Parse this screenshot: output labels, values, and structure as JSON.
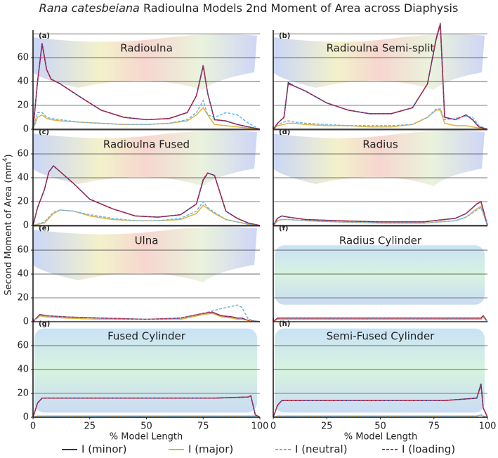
{
  "title_species": "Rana catesbeiana",
  "title": "Radioulna Models 2nd Moment of Area across Diaphysis",
  "y_label": "Second Moment of Area (mm",
  "y_label_sup": "4",
  "y_label_end": ")",
  "x_label": "% Model Length",
  "xlim": [
    0,
    100
  ],
  "xticks": [
    0,
    25,
    50,
    75,
    100
  ],
  "legend": [
    {
      "name": "I (minor)",
      "color": "#2b2d84",
      "dashed": false
    },
    {
      "name": "I (major)",
      "color": "#e2b13c",
      "dashed": false
    },
    {
      "name": "I (neutral)",
      "color": "#6db6ea",
      "dashed": true
    },
    {
      "name": "I (loading)",
      "color": "#c2304c",
      "dashed": true
    }
  ],
  "chart_data": [
    {
      "type": "line",
      "label": "(a)",
      "annotation": "Radioulna",
      "ylim": [
        0,
        83
      ],
      "yticks": [
        0,
        20,
        40,
        60
      ],
      "grid_lines": [
        20,
        40,
        60,
        80
      ],
      "x": [
        0,
        2,
        4,
        6,
        8,
        12,
        20,
        30,
        40,
        50,
        60,
        68,
        72,
        75,
        77,
        80,
        85,
        90,
        95,
        100
      ],
      "series": [
        {
          "values": [
            0,
            40,
            72,
            50,
            42,
            38,
            28,
            16,
            10,
            8,
            9,
            14,
            28,
            53,
            30,
            8,
            7,
            4,
            2,
            0
          ]
        },
        {
          "values": [
            0,
            10,
            12,
            9,
            8,
            7,
            6,
            5,
            4,
            4,
            5,
            7,
            12,
            18,
            12,
            4,
            3,
            2,
            1,
            0
          ]
        },
        {
          "values": [
            0,
            14,
            14,
            10,
            9,
            8,
            6,
            5,
            4,
            4,
            5,
            8,
            14,
            24,
            12,
            10,
            14,
            12,
            5,
            0
          ]
        },
        {
          "values": [
            0,
            40,
            71,
            50,
            42,
            38,
            28,
            16,
            10,
            8,
            9,
            14,
            28,
            54,
            30,
            8,
            7,
            4,
            2,
            0
          ]
        }
      ]
    },
    {
      "type": "line",
      "label": "(b)",
      "annotation": "Radioulna Semi-split",
      "ylim": [
        0,
        83
      ],
      "grid_lines": [
        20,
        40,
        60,
        80
      ],
      "x": [
        0,
        2,
        5,
        7,
        10,
        15,
        25,
        35,
        45,
        55,
        65,
        72,
        76,
        78,
        80,
        85,
        90,
        93,
        96,
        100
      ],
      "series": [
        {
          "values": [
            0,
            5,
            10,
            39,
            36,
            32,
            22,
            16,
            13,
            13,
            18,
            38,
            75,
            88,
            10,
            8,
            12,
            8,
            2,
            0
          ]
        },
        {
          "values": [
            0,
            3,
            4,
            5,
            5,
            4,
            3,
            3,
            2,
            2,
            4,
            10,
            16,
            16,
            5,
            3,
            3,
            2,
            1,
            0
          ]
        },
        {
          "values": [
            0,
            4,
            6,
            7,
            6,
            5,
            4,
            3,
            3,
            3,
            4,
            10,
            17,
            17,
            8,
            9,
            11,
            10,
            3,
            0
          ]
        },
        {
          "values": [
            0,
            5,
            10,
            38,
            36,
            32,
            22,
            16,
            13,
            13,
            18,
            38,
            76,
            89,
            10,
            8,
            12,
            8,
            2,
            0
          ]
        }
      ]
    },
    {
      "type": "line",
      "label": "(c)",
      "annotation": "Radioulna Fused",
      "ylim": [
        0,
        83
      ],
      "yticks": [
        0,
        20,
        40,
        60
      ],
      "grid_lines": [
        20,
        40,
        60,
        80
      ],
      "x": [
        0,
        2,
        5,
        7,
        9,
        12,
        18,
        25,
        35,
        45,
        55,
        65,
        72,
        75,
        77,
        80,
        85,
        90,
        95,
        100
      ],
      "series": [
        {
          "values": [
            0,
            15,
            30,
            45,
            50,
            45,
            35,
            22,
            14,
            8,
            7,
            9,
            18,
            38,
            44,
            42,
            12,
            6,
            2,
            0
          ]
        },
        {
          "values": [
            0,
            1,
            2,
            6,
            10,
            13,
            12,
            8,
            5,
            4,
            4,
            5,
            10,
            17,
            14,
            10,
            5,
            3,
            1,
            0
          ]
        },
        {
          "values": [
            0,
            1,
            3,
            7,
            11,
            13,
            12,
            9,
            6,
            4,
            4,
            6,
            12,
            20,
            15,
            11,
            5,
            3,
            1,
            0
          ]
        },
        {
          "values": [
            0,
            15,
            30,
            45,
            50,
            45,
            35,
            22,
            14,
            8,
            7,
            9,
            18,
            39,
            44,
            42,
            12,
            6,
            2,
            0
          ]
        }
      ]
    },
    {
      "type": "line",
      "label": "(d)",
      "annotation": "Radius",
      "ylim": [
        0,
        83
      ],
      "grid_lines": [
        20,
        40,
        60,
        80
      ],
      "x": [
        0,
        2,
        4,
        7,
        15,
        30,
        50,
        70,
        85,
        90,
        95,
        97,
        100
      ],
      "series": [
        {
          "values": [
            0,
            6,
            8,
            7,
            5,
            4,
            3,
            3,
            6,
            10,
            18,
            20,
            0
          ]
        },
        {
          "values": [
            0,
            4,
            5,
            5,
            4,
            3,
            2,
            2,
            4,
            7,
            14,
            16,
            0
          ]
        },
        {
          "values": [
            0,
            4,
            5,
            5,
            4,
            3,
            2,
            2,
            4,
            7,
            13,
            15,
            0
          ]
        },
        {
          "values": [
            0,
            6,
            8,
            7,
            5,
            4,
            3,
            3,
            6,
            10,
            18,
            20,
            0
          ]
        }
      ]
    },
    {
      "type": "line",
      "label": "(e)",
      "annotation": "Ulna",
      "ylim": [
        0,
        83
      ],
      "yticks": [
        0,
        20,
        40,
        60
      ],
      "grid_lines": [
        20,
        40,
        60,
        80
      ],
      "x": [
        0,
        3,
        6,
        15,
        30,
        50,
        65,
        75,
        79,
        83,
        88,
        90,
        92,
        95,
        100
      ],
      "series": [
        {
          "values": [
            0,
            6,
            5,
            4,
            3,
            2,
            3,
            7,
            8,
            5,
            4,
            3,
            3,
            1,
            0
          ]
        },
        {
          "values": [
            0,
            5,
            4,
            3,
            2,
            2,
            2,
            6,
            7,
            4,
            3,
            2,
            2,
            1,
            0
          ]
        },
        {
          "values": [
            0,
            5,
            5,
            4,
            3,
            2,
            3,
            7,
            9,
            11,
            13,
            14,
            12,
            2,
            0
          ]
        },
        {
          "values": [
            0,
            6,
            5,
            4,
            3,
            2,
            3,
            7,
            8,
            5,
            4,
            3,
            3,
            1,
            0
          ]
        }
      ]
    },
    {
      "type": "line",
      "label": "(f)",
      "annotation": "Radius Cylinder",
      "ylim": [
        0,
        83
      ],
      "grid_lines": [
        20,
        40,
        60,
        80
      ],
      "x": [
        0,
        2,
        50,
        97,
        98,
        100
      ],
      "series": [
        {
          "values": [
            0,
            3,
            3,
            3,
            5,
            0
          ]
        },
        {
          "values": [
            0,
            2,
            2,
            2,
            4,
            0
          ]
        },
        {
          "values": [
            0,
            2,
            2,
            2,
            4,
            0
          ]
        },
        {
          "values": [
            0,
            3,
            3,
            3,
            5,
            0
          ]
        }
      ]
    },
    {
      "type": "line",
      "label": "(g)",
      "annotation": "Fused Cylinder",
      "ylim": [
        0,
        83
      ],
      "yticks": [
        0,
        20,
        40,
        60
      ],
      "grid_lines": [
        20,
        40,
        60,
        80
      ],
      "x": [
        0,
        2,
        4,
        20,
        40,
        60,
        80,
        95,
        96,
        98,
        100
      ],
      "series": [
        {
          "values": [
            0,
            12,
            16,
            16,
            16,
            16,
            16,
            17,
            18,
            2,
            0
          ]
        },
        {
          "values": [
            0,
            1,
            1,
            1,
            1,
            1,
            1,
            1,
            1,
            1,
            0
          ]
        },
        {
          "values": [
            0,
            1,
            1,
            1,
            1,
            1,
            1,
            1,
            1,
            1,
            0
          ]
        },
        {
          "values": [
            0,
            12,
            16,
            16,
            16,
            16,
            16,
            17,
            18,
            2,
            0
          ]
        }
      ]
    },
    {
      "type": "line",
      "label": "(h)",
      "annotation": "Semi-Fused Cylinder",
      "ylim": [
        0,
        83
      ],
      "grid_lines": [
        20,
        40,
        60,
        80
      ],
      "x": [
        0,
        2,
        4,
        20,
        40,
        60,
        80,
        95,
        97,
        98,
        100
      ],
      "series": [
        {
          "values": [
            0,
            10,
            14,
            14,
            14,
            14,
            14,
            16,
            28,
            8,
            0
          ]
        },
        {
          "values": [
            0,
            1,
            1,
            1,
            1,
            1,
            1,
            1,
            2,
            1,
            0
          ]
        },
        {
          "values": [
            0,
            1,
            1,
            1,
            1,
            1,
            1,
            1,
            2,
            1,
            0
          ]
        },
        {
          "values": [
            0,
            10,
            14,
            14,
            14,
            14,
            14,
            16,
            27,
            8,
            0
          ]
        }
      ]
    }
  ]
}
